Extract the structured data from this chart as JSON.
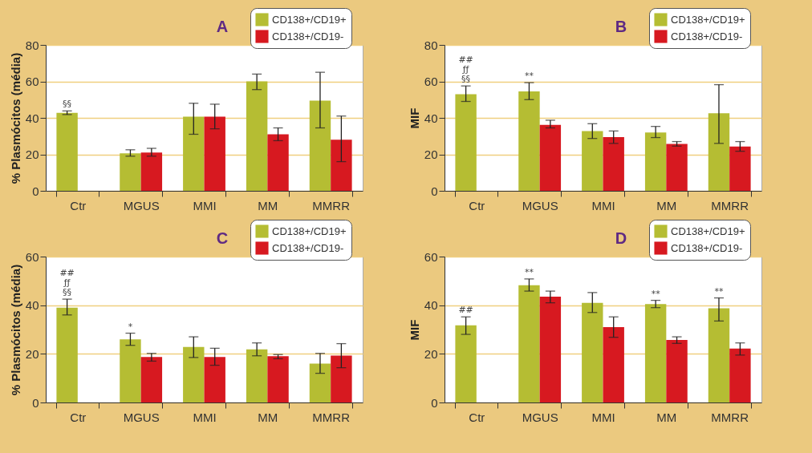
{
  "chart_data": [
    {
      "type": "bar",
      "title": "A",
      "ylabel": "% Plasmócitos (média)",
      "categories": [
        "Ctr",
        "MGUS",
        "MMI",
        "MM",
        "MMRR"
      ],
      "ylim": [
        0,
        80
      ],
      "yticks": [
        0,
        20,
        40,
        60,
        80
      ],
      "grid": "y",
      "legend": "top right",
      "series": [
        {
          "name": "CD138+/CD19+",
          "color": "#b5bd33",
          "values": [
            42.8,
            20.5,
            40.7,
            60,
            49.5
          ],
          "errors": [
            [
              41.8,
              43.8
            ],
            [
              19,
              22.5
            ],
            [
              31,
              48
            ],
            [
              55.5,
              64
            ],
            [
              34.5,
              65
            ]
          ]
        },
        {
          "name": "CD138+/CD19-",
          "color": "#d71920",
          "values": [
            null,
            21,
            40.7,
            31,
            28
          ],
          "errors": [
            null,
            [
              19,
              23.3
            ],
            [
              34,
              47.5
            ],
            [
              27.5,
              34.5
            ],
            [
              16,
              41
            ]
          ]
        }
      ],
      "annotations": [
        {
          "text": "§§",
          "x": "Ctr",
          "y": 42.8
        }
      ]
    },
    {
      "type": "bar",
      "title": "B",
      "ylabel": "MIF",
      "categories": [
        "Ctr",
        "MGUS",
        "MMI",
        "MM",
        "MMRR"
      ],
      "ylim": [
        0,
        80
      ],
      "yticks": [
        0,
        20,
        40,
        60,
        80
      ],
      "grid": "y",
      "legend": "top right",
      "series": [
        {
          "name": "CD138+/CD19+",
          "color": "#b5bd33",
          "values": [
            53,
            54.5,
            32.8,
            32,
            42.5
          ],
          "errors": [
            [
              49,
              57.5
            ],
            [
              50,
              59.3
            ],
            [
              28.7,
              36.8
            ],
            [
              29.2,
              35.3
            ],
            [
              26,
              58.2
            ]
          ]
        },
        {
          "name": "CD138+/CD19-",
          "color": "#d71920",
          "values": [
            null,
            36.2,
            29.5,
            25.7,
            24.3
          ],
          "errors": [
            null,
            [
              34.5,
              38.7
            ],
            [
              26,
              32.8
            ],
            [
              24.5,
              27
            ],
            [
              21.7,
              27
            ]
          ]
        }
      ],
      "annotations": [
        {
          "text": "##\nƒƒ\n§§",
          "x": "Ctr",
          "y": 53
        },
        {
          "text": "**",
          "x": "MGUS",
          "y": 54.5
        }
      ]
    },
    {
      "type": "bar",
      "title": "C",
      "ylabel": "% Plasmócitos (média)",
      "categories": [
        "Ctr",
        "MGUS",
        "MMI",
        "MM",
        "MMRR"
      ],
      "ylim": [
        0,
        60
      ],
      "yticks": [
        0,
        20,
        40,
        60
      ],
      "grid": "y",
      "legend": "top right",
      "series": [
        {
          "name": "CD138+/CD19+",
          "color": "#b5bd33",
          "values": [
            39,
            26,
            22.8,
            21.8,
            16
          ],
          "errors": [
            [
              36,
              42.5
            ],
            [
              23.5,
              28.5
            ],
            [
              18.5,
              27
            ],
            [
              19.2,
              24.5
            ],
            [
              12,
              20.2
            ]
          ]
        },
        {
          "name": "CD138+/CD19-",
          "color": "#d71920",
          "values": [
            null,
            18.7,
            18.7,
            19,
            19.3
          ],
          "errors": [
            null,
            [
              17,
              20.2
            ],
            [
              15.3,
              22.3
            ],
            [
              18,
              19.7
            ],
            [
              14.3,
              24.2
            ]
          ]
        }
      ],
      "annotations": [
        {
          "text": "##\nƒƒ\n§§",
          "x": "Ctr",
          "y": 39
        },
        {
          "text": "*",
          "x": "MGUS",
          "y": 26
        }
      ]
    },
    {
      "type": "bar",
      "title": "D",
      "ylabel": "MIF",
      "categories": [
        "Ctr",
        "MGUS",
        "MMI",
        "MM",
        "MMRR"
      ],
      "ylim": [
        0,
        60
      ],
      "yticks": [
        0,
        20,
        40,
        60
      ],
      "grid": "y",
      "legend": "top right",
      "series": [
        {
          "name": "CD138+/CD19+",
          "color": "#b5bd33",
          "values": [
            31.7,
            48.2,
            41,
            40.5,
            38.7
          ],
          "errors": [
            [
              28,
              35.2
            ],
            [
              45.8,
              50.8
            ],
            [
              37,
              45.2
            ],
            [
              39,
              42
            ],
            [
              33.5,
              43
            ]
          ]
        },
        {
          "name": "CD138+/CD19-",
          "color": "#d71920",
          "values": [
            null,
            43.5,
            31,
            25.7,
            22.2
          ],
          "errors": [
            null,
            [
              41,
              45.8
            ],
            [
              26.8,
              35.2
            ],
            [
              24.3,
              27
            ],
            [
              19.5,
              24.5
            ]
          ]
        }
      ],
      "annotations": [
        {
          "text": "##",
          "x": "Ctr",
          "y": 31.7
        },
        {
          "text": "**",
          "x": "MGUS",
          "y": 48.2
        },
        {
          "text": "**",
          "x": "MM",
          "y": 40.5
        },
        {
          "text": "**",
          "x": "MMRR",
          "y": 38.7
        }
      ]
    }
  ]
}
